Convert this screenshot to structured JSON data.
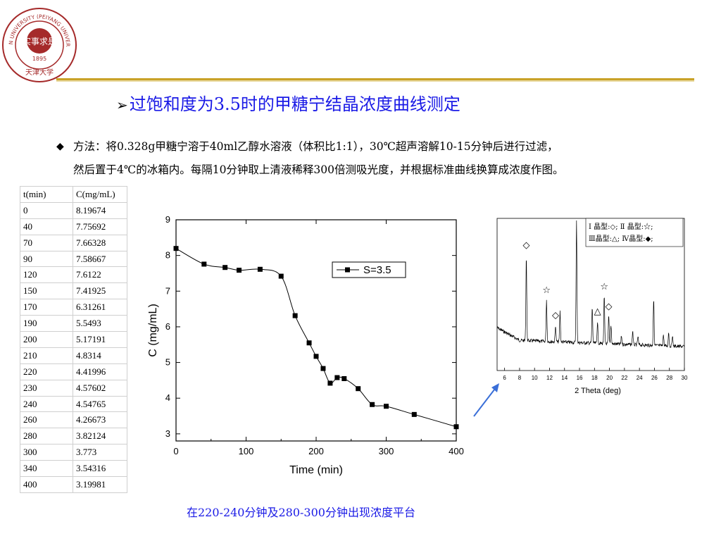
{
  "logo": {
    "text_top": "TIANJIN UNIVERSITY (PEIYANG UNIVERSITY)",
    "center_text": "1895",
    "chinese_name": "天津大学",
    "seal_chars": "实事求是"
  },
  "title": {
    "arrow": "➢",
    "text": "过饱和度为3.5时的甲糖宁结晶浓度曲线测定"
  },
  "method": {
    "bullet": "◆",
    "line1": "方法：将0.328g甲糖宁溶于40ml乙醇水溶液（体积比1:1），30℃超声溶解10-15分钟后进行过滤，",
    "line2": "然后置于4℃的冰箱内。每隔10分钟取上清液稀释300倍测吸光度，并根据标准曲线换算成浓度作图。"
  },
  "table": {
    "headers": [
      "t(min)",
      "C(mg/mL)"
    ],
    "rows": [
      [
        "0",
        "8.19674"
      ],
      [
        "40",
        "7.75692"
      ],
      [
        "70",
        "7.66328"
      ],
      [
        "90",
        "7.58667"
      ],
      [
        "120",
        "7.6122"
      ],
      [
        "150",
        "7.41925"
      ],
      [
        "170",
        "6.31261"
      ],
      [
        "190",
        "5.5493"
      ],
      [
        "200",
        "5.17191"
      ],
      [
        "210",
        "4.8314"
      ],
      [
        "220",
        "4.41996"
      ],
      [
        "230",
        "4.57602"
      ],
      [
        "240",
        "4.54765"
      ],
      [
        "260",
        "4.26673"
      ],
      [
        "280",
        "3.82124"
      ],
      [
        "300",
        "3.773"
      ],
      [
        "340",
        "3.54316"
      ],
      [
        "400",
        "3.19981"
      ]
    ]
  },
  "chart_data": [
    {
      "type": "line",
      "xlabel": "Time (min)",
      "ylabel": "C (mg/mL)",
      "xlim": [
        0,
        400
      ],
      "ylim": [
        2.8,
        9
      ],
      "xticks": [
        "0",
        "100",
        "200",
        "300",
        "400"
      ],
      "yticks": [
        "3",
        "4",
        "5",
        "6",
        "7",
        "8",
        "9"
      ],
      "legend_position": "upper-right",
      "series": [
        {
          "name": "S=3.5",
          "marker": "square",
          "color": "#000000",
          "x": [
            0,
            40,
            70,
            90,
            120,
            150,
            170,
            190,
            200,
            210,
            220,
            230,
            240,
            260,
            280,
            300,
            340,
            400
          ],
          "y": [
            8.19674,
            7.75692,
            7.66328,
            7.58667,
            7.6122,
            7.41925,
            6.31261,
            5.5493,
            5.17191,
            4.8314,
            4.41996,
            4.57602,
            4.54765,
            4.26673,
            3.82124,
            3.773,
            3.54316,
            3.19981
          ]
        }
      ]
    },
    {
      "type": "line",
      "xlabel": "2 Theta (deg)",
      "ylabel": "",
      "xlim": [
        5,
        30
      ],
      "xticks": [
        "6",
        "8",
        "10",
        "12",
        "14",
        "16",
        "18",
        "20",
        "22",
        "24",
        "26",
        "28",
        "30"
      ],
      "legend_lines": [
        "Ⅰ 晶型:◇; Ⅱ 晶型:☆;",
        "Ⅲ晶型:△; Ⅳ晶型:◆;"
      ],
      "peaks": [
        {
          "x": 8.9,
          "h": 0.62,
          "marker": "◇"
        },
        {
          "x": 11.6,
          "h": 0.3,
          "marker": "☆"
        },
        {
          "x": 12.8,
          "h": 0.12,
          "marker": "◇"
        },
        {
          "x": 13.4,
          "h": 0.22,
          "marker": ""
        },
        {
          "x": 15.6,
          "h": 0.88,
          "marker": "△"
        },
        {
          "x": 17.7,
          "h": 0.26,
          "marker": ""
        },
        {
          "x": 18.4,
          "h": 0.16,
          "marker": "△"
        },
        {
          "x": 19.3,
          "h": 0.34,
          "marker": "☆"
        },
        {
          "x": 19.9,
          "h": 0.2,
          "marker": "◇"
        },
        {
          "x": 20.2,
          "h": 0.14,
          "marker": ""
        },
        {
          "x": 21.6,
          "h": 0.06,
          "marker": ""
        },
        {
          "x": 23.1,
          "h": 0.1,
          "marker": ""
        },
        {
          "x": 23.8,
          "h": 0.06,
          "marker": ""
        },
        {
          "x": 25.9,
          "h": 0.34,
          "marker": ""
        },
        {
          "x": 27.2,
          "h": 0.08,
          "marker": ""
        },
        {
          "x": 27.9,
          "h": 0.1,
          "marker": ""
        },
        {
          "x": 28.4,
          "h": 0.08,
          "marker": ""
        }
      ]
    }
  ],
  "caption": "在220-240分钟及280-300分钟出现浓度平台",
  "colors": {
    "title": "#1a1ae6",
    "rule": "#c9a227",
    "logo": "#a52a2a",
    "arrow": "#3a6fd8"
  }
}
